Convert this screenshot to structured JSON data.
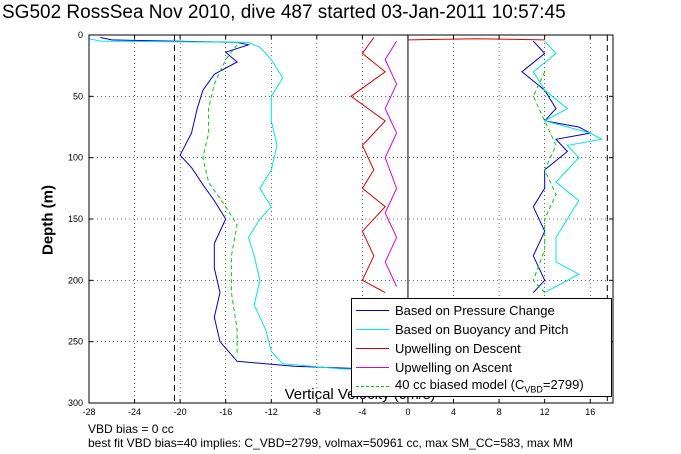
{
  "page": {
    "title": "SG502 RossSea Nov 2010, dive 487 started 03-Jan-2011 10:57:45",
    "vbd_note": "VBD bias = 0 cc",
    "fit_note": "best fit VBD bias=40 implies: C_VBD=2799, volmax=50961 cc, max SM_CC=583, max MM"
  },
  "chart_data": {
    "type": "line",
    "xlabel": "Vertical Velocity (cm/s)",
    "ylabel": "Depth (m)",
    "xlim": [
      -28,
      18
    ],
    "ylim": [
      300,
      0
    ],
    "y_reversed": true,
    "xticks": [
      -28,
      -24,
      -20,
      -16,
      -12,
      -8,
      -4,
      0,
      4,
      8,
      12,
      16
    ],
    "yticks": [
      0,
      50,
      100,
      150,
      200,
      250,
      300
    ],
    "grid": true,
    "grid_style": "dotted",
    "reference_lines": [
      {
        "x": -20.5,
        "style": "dashed",
        "color": "#000000"
      },
      {
        "x": 0,
        "style": "solid",
        "color": "#000000"
      },
      {
        "x": 17.5,
        "style": "dashed",
        "color": "#000000"
      }
    ],
    "legend_placement": "bottom-right",
    "legend": [
      {
        "label": "Based on Pressure Change",
        "color": "#0000cc",
        "style": "solid"
      },
      {
        "label": "Based on Buoyancy and Pitch",
        "color": "#00e5e5",
        "style": "solid"
      },
      {
        "label": "Upwelling on Descent",
        "color": "#dd0000",
        "style": "solid"
      },
      {
        "label": "Upwelling on Ascent",
        "color": "#dd00dd",
        "style": "solid"
      },
      {
        "label": "40 cc biased model (C",
        "sub": "VBD",
        "suffix": "=2799)",
        "color": "#00cc00",
        "style": "dashed"
      }
    ],
    "series": [
      {
        "color": "#0000cc",
        "dash": "",
        "points": [
          [
            -27,
            2
          ],
          [
            -26,
            4
          ],
          [
            -15,
            6
          ],
          [
            -14,
            8
          ],
          [
            -16,
            14
          ],
          [
            -15,
            22
          ],
          [
            -17,
            32
          ],
          [
            -18,
            45
          ],
          [
            -18.5,
            60
          ],
          [
            -19,
            80
          ],
          [
            -20,
            98
          ],
          [
            -19,
            108
          ],
          [
            -18,
            122
          ],
          [
            -17,
            135
          ],
          [
            -16,
            150
          ],
          [
            -17,
            170
          ],
          [
            -17,
            190
          ],
          [
            -16.5,
            210
          ],
          [
            -17,
            230
          ],
          [
            -16.5,
            250
          ],
          [
            -15,
            266
          ],
          [
            -10,
            270
          ],
          [
            -4,
            272
          ],
          [
            -2,
            272
          ]
        ]
      },
      {
        "color": "#00e5e5",
        "dash": "",
        "points": [
          [
            -28,
            3
          ],
          [
            -27,
            5
          ],
          [
            -14,
            6
          ],
          [
            -13,
            10
          ],
          [
            -12,
            20
          ],
          [
            -11,
            35
          ],
          [
            -12,
            50
          ],
          [
            -12,
            70
          ],
          [
            -11.5,
            90
          ],
          [
            -12,
            110
          ],
          [
            -13,
            125
          ],
          [
            -12,
            140
          ],
          [
            -13,
            150
          ],
          [
            -14,
            165
          ],
          [
            -13.5,
            180
          ],
          [
            -13,
            200
          ],
          [
            -13.5,
            220
          ],
          [
            -12.5,
            240
          ],
          [
            -12,
            258
          ],
          [
            -11,
            268
          ],
          [
            -6,
            272
          ],
          [
            -3,
            273
          ]
        ]
      },
      {
        "color": "#00cc00",
        "dash": "4,3",
        "points": [
          [
            -15,
            8
          ],
          [
            -16,
            20
          ],
          [
            -17,
            40
          ],
          [
            -17.5,
            60
          ],
          [
            -17.5,
            80
          ],
          [
            -18,
            100
          ],
          [
            -17.5,
            120
          ],
          [
            -16,
            140
          ],
          [
            -15,
            155
          ],
          [
            -15.5,
            180
          ],
          [
            -15.5,
            210
          ],
          [
            -15,
            240
          ],
          [
            -15,
            262
          ]
        ]
      },
      {
        "color": "#dd0000",
        "dash": "",
        "points": [
          [
            -3,
            2
          ],
          [
            -4,
            15
          ],
          [
            -2,
            30
          ],
          [
            -5,
            50
          ],
          [
            -2,
            70
          ],
          [
            -4,
            90
          ],
          [
            -3,
            110
          ],
          [
            -4,
            125
          ],
          [
            -2,
            140
          ],
          [
            -4,
            160
          ],
          [
            -3,
            180
          ],
          [
            -4,
            200
          ],
          [
            -2,
            210
          ]
        ]
      },
      {
        "color": "#dd00dd",
        "dash": "",
        "points": [
          [
            -1,
            5
          ],
          [
            -2,
            20
          ],
          [
            -1,
            40
          ],
          [
            -2,
            60
          ],
          [
            -1,
            80
          ],
          [
            -2,
            100
          ],
          [
            -1,
            125
          ],
          [
            -2,
            145
          ],
          [
            -1,
            165
          ],
          [
            -2,
            185
          ],
          [
            -1,
            205
          ]
        ]
      },
      {
        "color": "#0000cc",
        "dash": "",
        "points": [
          [
            11,
            5
          ],
          [
            12,
            15
          ],
          [
            10,
            30
          ],
          [
            12,
            45
          ],
          [
            13,
            60
          ],
          [
            12,
            70
          ],
          [
            15,
            75
          ],
          [
            16,
            80
          ],
          [
            13,
            85
          ],
          [
            14,
            95
          ],
          [
            12,
            110
          ],
          [
            12,
            125
          ],
          [
            11,
            140
          ],
          [
            12,
            160
          ],
          [
            11,
            180
          ],
          [
            12,
            200
          ],
          [
            11,
            210
          ]
        ]
      },
      {
        "color": "#00e5e5",
        "dash": "",
        "points": [
          [
            12,
            5
          ],
          [
            13,
            15
          ],
          [
            11,
            30
          ],
          [
            12,
            45
          ],
          [
            14,
            60
          ],
          [
            12,
            70
          ],
          [
            16,
            80
          ],
          [
            17,
            85
          ],
          [
            14,
            90
          ],
          [
            15,
            100
          ],
          [
            14,
            110
          ],
          [
            13,
            120
          ],
          [
            15,
            135
          ],
          [
            14,
            150
          ],
          [
            13,
            165
          ],
          [
            13,
            185
          ],
          [
            15,
            195
          ],
          [
            12,
            210
          ]
        ]
      },
      {
        "color": "#00cc00",
        "dash": "4,3",
        "points": [
          [
            12,
            30
          ],
          [
            11,
            50
          ],
          [
            12,
            70
          ],
          [
            13,
            90
          ],
          [
            12,
            110
          ],
          [
            13,
            130
          ],
          [
            12,
            150
          ],
          [
            12,
            175
          ],
          [
            11,
            200
          ],
          [
            12,
            210
          ]
        ]
      },
      {
        "color": "#dd0000",
        "dash": "",
        "points": [
          [
            0,
            4
          ],
          [
            6,
            3
          ],
          [
            12,
            4
          ]
        ]
      }
    ]
  }
}
